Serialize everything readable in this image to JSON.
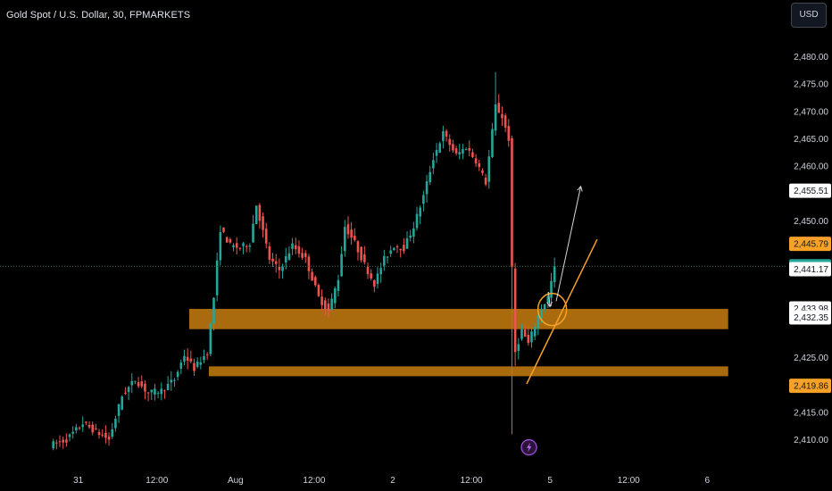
{
  "header": {
    "title": "Gold Spot / U.S. Dollar, 30, FPMARKETS",
    "currency_button": "USD"
  },
  "colors": {
    "background": "#000000",
    "bull": "#26a69a",
    "bear": "#ef5350",
    "zone": "#b8730f",
    "trendline": "#f7a128",
    "arrow": "#d8d8d8",
    "price_label_orange": "#f7a128",
    "price_label_green": "#26a69a",
    "axis_text": "#d1d4dc"
  },
  "chart_data": {
    "type": "candlestick",
    "symbol": "Gold Spot / U.S. Dollar",
    "timeframe": "30",
    "broker": "FPMARKETS",
    "ylim": [
      2407.5,
      2483.5
    ],
    "y_ticks": [
      2410,
      2415,
      2420,
      2425,
      2430,
      2435,
      2440,
      2445,
      2450,
      2455,
      2460,
      2465,
      2470,
      2475,
      2480
    ],
    "y_tick_labels": [
      "2,410.00",
      "2,415.00",
      "2,420.00",
      "2,425.00",
      "",
      "",
      "",
      "",
      "2,450.00",
      "",
      "2,460.00",
      "2,465.00",
      "2,470.00",
      "2,475.00",
      "2,480.00"
    ],
    "x_ticks": [
      {
        "label": "31",
        "bar": 4
      },
      {
        "label": "12:00",
        "bar": 28
      },
      {
        "label": "Aug",
        "bar": 52
      },
      {
        "label": "12:00",
        "bar": 76
      },
      {
        "label": "2",
        "bar": 100
      },
      {
        "label": "12:00",
        "bar": 124
      },
      {
        "label": "5",
        "bar": 148
      },
      {
        "label": "12:00",
        "bar": 172
      },
      {
        "label": "6",
        "bar": 196
      }
    ],
    "bar_count_visible": 210,
    "waypoints": [
      [
        0,
        2409.0
      ],
      [
        5,
        2410.0
      ],
      [
        10,
        2413.0
      ],
      [
        14,
        2411.5
      ],
      [
        18,
        2410.0
      ],
      [
        22,
        2418.0
      ],
      [
        26,
        2421.0
      ],
      [
        30,
        2418.5
      ],
      [
        34,
        2419.0
      ],
      [
        38,
        2421.0
      ],
      [
        41,
        2425.5
      ],
      [
        44,
        2423.0
      ],
      [
        48,
        2426.0
      ],
      [
        50,
        2436.0
      ],
      [
        52,
        2448.5
      ],
      [
        55,
        2445.5
      ],
      [
        58,
        2445.0
      ],
      [
        61,
        2446.0
      ],
      [
        63,
        2453.0
      ],
      [
        65,
        2448.0
      ],
      [
        67,
        2443.0
      ],
      [
        70,
        2441.0
      ],
      [
        74,
        2445.5
      ],
      [
        78,
        2443.0
      ],
      [
        82,
        2436.0
      ],
      [
        85,
        2433.5
      ],
      [
        88,
        2439.5
      ],
      [
        90,
        2449.0
      ],
      [
        93,
        2446.0
      ],
      [
        96,
        2442.0
      ],
      [
        99,
        2438.5
      ],
      [
        102,
        2443.0
      ],
      [
        105,
        2445.5
      ],
      [
        108,
        2445.0
      ],
      [
        111,
        2449.0
      ],
      [
        114,
        2454.5
      ],
      [
        117,
        2461.5
      ],
      [
        120,
        2466.0
      ],
      [
        124,
        2462.0
      ],
      [
        127,
        2463.5
      ],
      [
        130,
        2461.0
      ],
      [
        133,
        2457.0
      ],
      [
        136,
        2471.0
      ],
      [
        138,
        2469.0
      ],
      [
        140,
        2465.0
      ],
      [
        141,
        2441.0
      ],
      [
        142,
        2426.0
      ],
      [
        144,
        2430.0
      ],
      [
        146,
        2427.5
      ],
      [
        148,
        2431.0
      ],
      [
        150,
        2434.0
      ],
      [
        152,
        2436.0
      ],
      [
        154,
        2441.7
      ]
    ],
    "price_labels": [
      {
        "value": 2455.51,
        "text": "2,455.51",
        "style": "white"
      },
      {
        "value": 2445.79,
        "text": "2,445.79",
        "style": "orange"
      },
      {
        "value": 2441.7,
        "text": "2,441.70",
        "style": "green"
      },
      {
        "value": 2441.17,
        "text": "2,441.17",
        "style": "white"
      },
      {
        "value": 2433.98,
        "text": "2,433.98",
        "style": "white"
      },
      {
        "value": 2432.35,
        "text": "2,432.35",
        "style": "white"
      },
      {
        "value": 2419.86,
        "text": "2,419.86",
        "style": "orange"
      }
    ],
    "current_price": 2441.7,
    "zones": [
      {
        "y_top": 2433.9,
        "y_bottom": 2430.2,
        "bar_start": 42.5,
        "bar_end": 207
      },
      {
        "y_top": 2423.4,
        "y_bottom": 2421.6,
        "bar_start": 48.5,
        "bar_end": 207
      }
    ],
    "trendline": {
      "bar_start": 145.5,
      "y_start": 2420.2,
      "bar_end": 167,
      "y_end": 2446.6
    },
    "circle": {
      "bar": 153.3,
      "y": 2433.8
    },
    "arrow_up": {
      "bar_start": 154.5,
      "y_start": 2435.3,
      "bar_end": 162,
      "y_end": 2456.3
    },
    "arrow_down": {
      "bar_start": 152.2,
      "y_start": 2437.0,
      "bar_end": 152.6,
      "y_end": 2434.3
    },
    "event_marker": {
      "bar": 146.2,
      "y": 2408.6,
      "icon": "lightning-icon"
    }
  }
}
